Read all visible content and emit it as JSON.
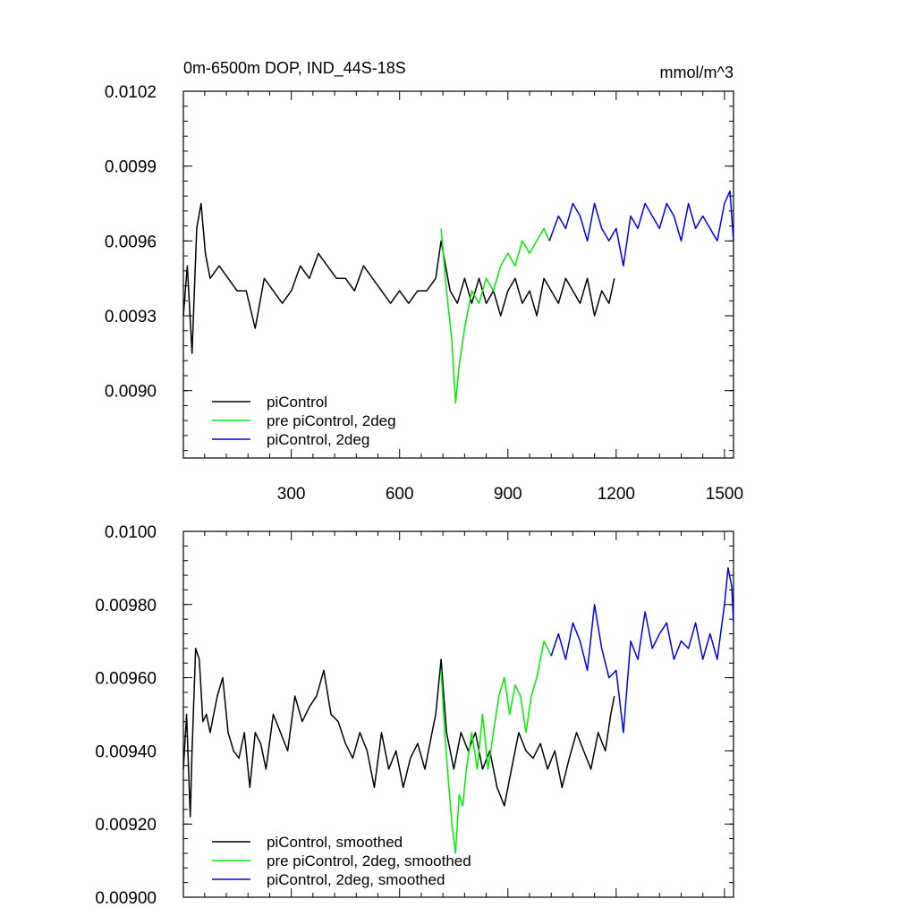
{
  "colors": {
    "black": "#000000",
    "green": "#00ee00",
    "blue": "#0000ee"
  },
  "chart_data": [
    {
      "type": "line",
      "title": "0m-6500m DOP, IND_44S-18S",
      "units": "mmol/m^3",
      "xlim": [
        1,
        1525
      ],
      "ylim": [
        0.00873,
        0.0102
      ],
      "x_ticks": [
        300,
        600,
        900,
        1200,
        1500
      ],
      "x_tick_labels": [
        "300",
        "600",
        "900",
        "1200",
        "1500"
      ],
      "y_ticks": [
        0.009,
        0.0093,
        0.0096,
        0.0099,
        0.0102
      ],
      "y_tick_labels": [
        "0.0090",
        "0.0093",
        "0.0096",
        "0.0099",
        "0.0102"
      ],
      "legend_position": "bottom-left",
      "series": [
        {
          "name": "piControl",
          "color": "#000000",
          "x": [
            1,
            12,
            25,
            38,
            50,
            62,
            75,
            100,
            125,
            150,
            175,
            200,
            225,
            250,
            275,
            300,
            325,
            350,
            375,
            400,
            425,
            450,
            475,
            500,
            525,
            550,
            575,
            600,
            625,
            650,
            675,
            700,
            715,
            740,
            760,
            780,
            800,
            820,
            840,
            860,
            880,
            900,
            920,
            940,
            960,
            980,
            1000,
            1020,
            1040,
            1060,
            1080,
            1100,
            1120,
            1140,
            1160,
            1180,
            1195
          ],
          "y": [
            0.0093,
            0.0095,
            0.00915,
            0.00965,
            0.00975,
            0.00955,
            0.00945,
            0.0095,
            0.00945,
            0.0094,
            0.0094,
            0.00925,
            0.00945,
            0.0094,
            0.00935,
            0.0094,
            0.0095,
            0.00945,
            0.00955,
            0.0095,
            0.00945,
            0.00945,
            0.0094,
            0.0095,
            0.00945,
            0.0094,
            0.00935,
            0.0094,
            0.00935,
            0.0094,
            0.0094,
            0.00945,
            0.0096,
            0.0094,
            0.00935,
            0.00945,
            0.00935,
            0.00945,
            0.00935,
            0.0094,
            0.0093,
            0.0094,
            0.00945,
            0.00935,
            0.0094,
            0.0093,
            0.00945,
            0.0094,
            0.00935,
            0.00945,
            0.0094,
            0.00935,
            0.00945,
            0.0093,
            0.0094,
            0.00935,
            0.00945
          ]
        },
        {
          "name": "pre piControl, 2deg",
          "color": "#00ee00",
          "x": [
            715,
            730,
            745,
            755,
            765,
            780,
            800,
            820,
            840,
            860,
            880,
            900,
            920,
            940,
            960,
            980,
            1000,
            1015
          ],
          "y": [
            0.00965,
            0.0094,
            0.0092,
            0.00895,
            0.0091,
            0.00925,
            0.0094,
            0.00935,
            0.00945,
            0.0094,
            0.0095,
            0.00955,
            0.0095,
            0.0096,
            0.00955,
            0.0096,
            0.00965,
            0.0096
          ]
        },
        {
          "name": "piControl, 2deg",
          "color": "#0000ee",
          "x": [
            1015,
            1040,
            1060,
            1080,
            1100,
            1120,
            1140,
            1160,
            1180,
            1200,
            1220,
            1240,
            1260,
            1280,
            1300,
            1320,
            1340,
            1360,
            1380,
            1400,
            1420,
            1440,
            1460,
            1480,
            1500,
            1515,
            1525
          ],
          "y": [
            0.0096,
            0.0097,
            0.00965,
            0.00975,
            0.0097,
            0.0096,
            0.00975,
            0.00965,
            0.0096,
            0.00965,
            0.0095,
            0.0097,
            0.00965,
            0.00975,
            0.0097,
            0.00965,
            0.00975,
            0.0097,
            0.0096,
            0.00975,
            0.00965,
            0.0097,
            0.00965,
            0.0096,
            0.00975,
            0.0098,
            0.0096
          ]
        }
      ]
    },
    {
      "type": "line",
      "xlim": [
        1,
        1525
      ],
      "ylim": [
        0.009,
        0.01
      ],
      "x_ticks": [
        300,
        600,
        900,
        1200,
        1500
      ],
      "y_ticks": [
        0.009,
        0.0092,
        0.0094,
        0.0096,
        0.0098,
        0.01
      ],
      "y_tick_labels": [
        "0.00900",
        "0.00920",
        "0.00940",
        "0.00960",
        "0.00980",
        "0.0100"
      ],
      "legend_position": "bottom-left",
      "series": [
        {
          "name": "piControl, smoothed",
          "color": "#000000",
          "x": [
            1,
            10,
            20,
            25,
            35,
            45,
            55,
            65,
            75,
            85,
            95,
            110,
            125,
            140,
            155,
            170,
            185,
            200,
            215,
            230,
            250,
            270,
            290,
            310,
            330,
            350,
            370,
            390,
            410,
            430,
            450,
            470,
            490,
            510,
            530,
            550,
            570,
            590,
            610,
            630,
            650,
            670,
            690,
            700,
            715,
            730,
            750,
            770,
            790,
            810,
            830,
            850,
            870,
            890,
            910,
            930,
            950,
            970,
            990,
            1010,
            1030,
            1050,
            1070,
            1090,
            1110,
            1130,
            1150,
            1170,
            1185,
            1195
          ],
          "y": [
            0.00935,
            0.0095,
            0.00922,
            0.0094,
            0.00968,
            0.00965,
            0.00948,
            0.0095,
            0.00945,
            0.0095,
            0.00955,
            0.0096,
            0.00945,
            0.0094,
            0.00938,
            0.00945,
            0.0093,
            0.00945,
            0.00942,
            0.00935,
            0.0095,
            0.00945,
            0.0094,
            0.00955,
            0.00948,
            0.00952,
            0.00955,
            0.00962,
            0.0095,
            0.00948,
            0.00942,
            0.00938,
            0.00945,
            0.0094,
            0.0093,
            0.00945,
            0.00935,
            0.0094,
            0.0093,
            0.00938,
            0.00942,
            0.00935,
            0.00945,
            0.0095,
            0.00965,
            0.00945,
            0.00935,
            0.00945,
            0.0094,
            0.00945,
            0.00935,
            0.0094,
            0.0093,
            0.00925,
            0.00935,
            0.00945,
            0.0094,
            0.00938,
            0.00942,
            0.00935,
            0.0094,
            0.0093,
            0.00938,
            0.00945,
            0.0094,
            0.00935,
            0.00945,
            0.0094,
            0.0095,
            0.00955
          ]
        },
        {
          "name": "pre piControl, 2deg, smoothed",
          "color": "#00ee00",
          "x": [
            715,
            725,
            735,
            745,
            755,
            765,
            775,
            785,
            800,
            815,
            830,
            845,
            860,
            875,
            890,
            905,
            920,
            935,
            950,
            965,
            980,
            990,
            1000,
            1010,
            1020
          ],
          "y": [
            0.00962,
            0.00945,
            0.00932,
            0.0092,
            0.00912,
            0.00928,
            0.00925,
            0.00935,
            0.00945,
            0.00935,
            0.0095,
            0.00935,
            0.00945,
            0.00955,
            0.0096,
            0.0095,
            0.00958,
            0.00955,
            0.00945,
            0.00955,
            0.0096,
            0.00965,
            0.0097,
            0.00968,
            0.00966
          ]
        },
        {
          "name": "piControl, 2deg, smoothed",
          "color": "#0000ee",
          "x": [
            1020,
            1040,
            1060,
            1080,
            1100,
            1120,
            1140,
            1160,
            1180,
            1200,
            1220,
            1240,
            1260,
            1280,
            1300,
            1320,
            1340,
            1360,
            1380,
            1400,
            1420,
            1440,
            1460,
            1480,
            1500,
            1510,
            1520,
            1525
          ],
          "y": [
            0.00966,
            0.00972,
            0.00965,
            0.00975,
            0.0097,
            0.00962,
            0.0098,
            0.00968,
            0.0096,
            0.00962,
            0.00945,
            0.0097,
            0.00965,
            0.00978,
            0.00968,
            0.00972,
            0.00975,
            0.00965,
            0.0097,
            0.00968,
            0.00975,
            0.00965,
            0.00972,
            0.00965,
            0.0098,
            0.0099,
            0.00985,
            0.00975
          ]
        }
      ]
    }
  ]
}
